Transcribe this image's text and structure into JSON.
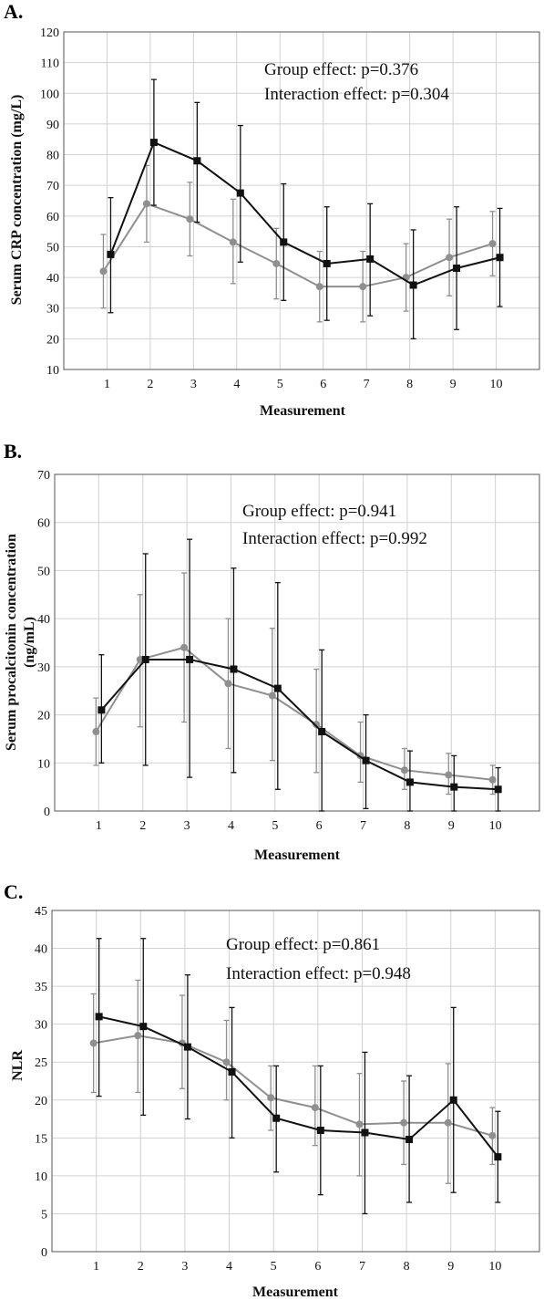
{
  "panels": {
    "A": {
      "letter": "A.",
      "xlabel": "Measurement",
      "ylabel": "Serum CRP concentration (mg/L)",
      "annotations": [
        "Group effect: p=0.376",
        "Interaction effect: p=0.304"
      ]
    },
    "B": {
      "letter": "B.",
      "xlabel": "Measurement",
      "ylabel_lines": [
        "Serum procalcitonin concentration",
        "(ng/mL)"
      ],
      "annotations": [
        "Group effect: p=0.941",
        "Interaction effect: p=0.992"
      ]
    },
    "C": {
      "letter": "C.",
      "xlabel": "Measurement",
      "ylabel": "NLR",
      "annotations": [
        "Group effect: p=0.861",
        "Interaction effect: p=0.948"
      ]
    }
  },
  "colors": {
    "gray_series": "#8f8f8f",
    "black_series": "#111111",
    "grid": "#d0d0d0"
  },
  "chart_data": [
    {
      "type": "line",
      "panel": "A",
      "x": [
        1,
        2,
        3,
        4,
        5,
        6,
        7,
        8,
        9,
        10
      ],
      "xlim": [
        0,
        11
      ],
      "ylim": [
        10,
        120
      ],
      "yticks": [
        10,
        20,
        30,
        40,
        50,
        60,
        70,
        80,
        90,
        100,
        110,
        120
      ],
      "grid": true,
      "series": [
        {
          "marker": "circle",
          "color": "#8f8f8f",
          "values": [
            42,
            64,
            59,
            51.5,
            44.5,
            37,
            37,
            40,
            46.5,
            51
          ],
          "err_low": [
            30,
            51.5,
            47,
            38,
            33,
            25.5,
            25.5,
            29,
            34,
            40.5
          ],
          "err_high": [
            54,
            76.5,
            71,
            65.5,
            56,
            48.5,
            48.5,
            51,
            59,
            61.5
          ]
        },
        {
          "marker": "square",
          "color": "#111111",
          "values": [
            47.5,
            84,
            78,
            67.5,
            51.5,
            44.5,
            46,
            37.5,
            43,
            46.5
          ],
          "err_low": [
            28.5,
            63.5,
            58,
            45,
            32.5,
            26,
            27.5,
            20,
            23,
            30.5
          ],
          "err_high": [
            66,
            104.5,
            97,
            89.5,
            70.5,
            63,
            64,
            55.5,
            63,
            62.5
          ]
        }
      ]
    },
    {
      "type": "line",
      "panel": "B",
      "x": [
        1,
        2,
        3,
        4,
        5,
        6,
        7,
        8,
        9,
        10
      ],
      "xlim": [
        0,
        11
      ],
      "ylim": [
        0,
        70
      ],
      "yticks": [
        0,
        10,
        20,
        30,
        40,
        50,
        60,
        70
      ],
      "grid": true,
      "series": [
        {
          "marker": "circle",
          "color": "#8f8f8f",
          "values": [
            16.5,
            31.5,
            34,
            26.5,
            24,
            18,
            11.5,
            8.5,
            7.5,
            6.5
          ],
          "err_low": [
            9.5,
            17.5,
            18.5,
            13,
            10.5,
            8,
            6,
            4.5,
            3.5,
            3.5
          ],
          "err_high": [
            23.5,
            45,
            49.5,
            40,
            38,
            29.5,
            18.5,
            13,
            12,
            9.5
          ]
        },
        {
          "marker": "square",
          "color": "#111111",
          "values": [
            21,
            31.5,
            31.5,
            29.5,
            25.5,
            16.5,
            10.5,
            6,
            5,
            4.5
          ],
          "err_low": [
            10,
            9.5,
            7,
            8,
            4.5,
            0,
            0.5,
            0,
            0,
            0
          ],
          "err_high": [
            32.5,
            53.5,
            56.5,
            50.5,
            47.5,
            33.5,
            20,
            12.5,
            11.5,
            9
          ]
        }
      ]
    },
    {
      "type": "line",
      "panel": "C",
      "x": [
        1,
        2,
        3,
        4,
        5,
        6,
        7,
        8,
        9,
        10
      ],
      "xlim": [
        0,
        11
      ],
      "ylim": [
        0,
        45
      ],
      "yticks": [
        0,
        5,
        10,
        15,
        20,
        25,
        30,
        35,
        40,
        45
      ],
      "grid": true,
      "series": [
        {
          "marker": "circle",
          "color": "#8f8f8f",
          "values": [
            27.5,
            28.5,
            27.5,
            25,
            20.3,
            19,
            16.8,
            17,
            17,
            15.3
          ],
          "err_low": [
            21,
            21,
            21.5,
            20,
            16,
            14,
            10,
            11.5,
            9,
            11.5
          ],
          "err_high": [
            34,
            35.8,
            33.8,
            30.5,
            24.5,
            24.5,
            23.5,
            22.5,
            24.8,
            19
          ]
        },
        {
          "marker": "square",
          "color": "#111111",
          "values": [
            31,
            29.7,
            27,
            23.7,
            17.6,
            16,
            15.7,
            14.8,
            20,
            12.5
          ],
          "err_low": [
            20.5,
            18,
            17.5,
            15,
            10.5,
            7.5,
            5,
            6.5,
            7.8,
            6.5
          ],
          "err_high": [
            41.3,
            41.3,
            36.5,
            32.2,
            24.5,
            24.5,
            26.3,
            23.2,
            32.2,
            18.5
          ]
        }
      ]
    }
  ]
}
